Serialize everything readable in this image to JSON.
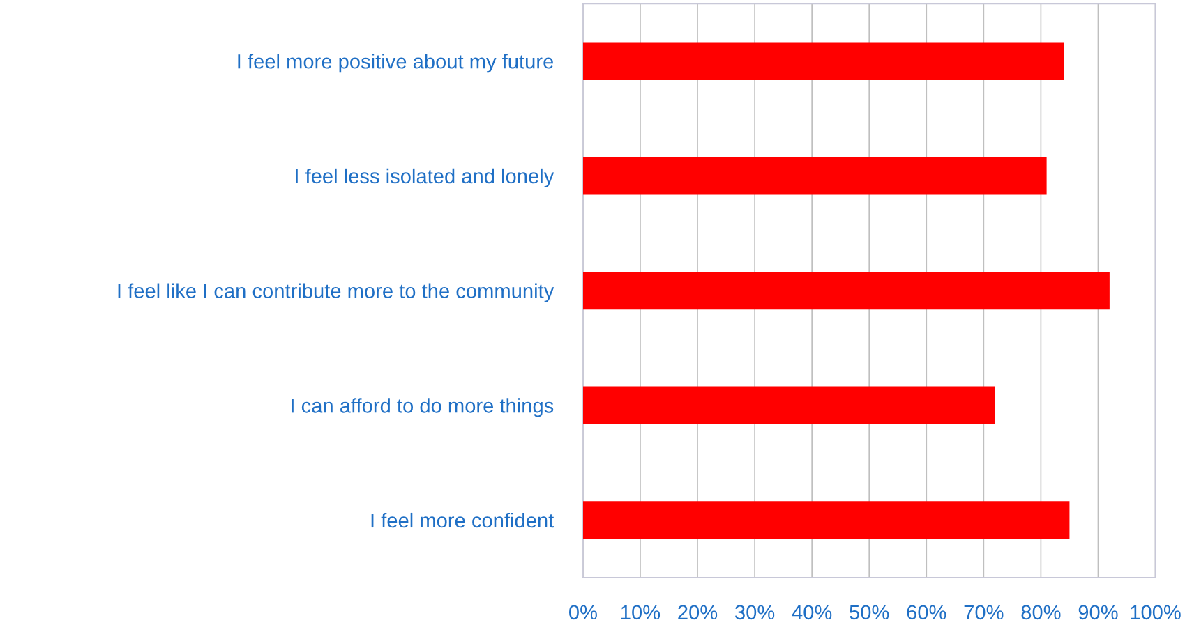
{
  "chart_data": {
    "type": "bar",
    "orientation": "horizontal",
    "categories": [
      "I feel more positive about my future",
      "I feel less isolated and lonely",
      "I feel like I can contribute more to the community",
      "I can afford to do more things",
      "I feel more confident"
    ],
    "values": [
      84,
      81,
      92,
      72,
      85
    ],
    "color": "#ff0000",
    "xlim": [
      0,
      100
    ],
    "xticks": [
      {
        "value": 0,
        "label": "0%"
      },
      {
        "value": 10,
        "label": "10%"
      },
      {
        "value": 20,
        "label": "20%"
      },
      {
        "value": 30,
        "label": "30%"
      },
      {
        "value": 40,
        "label": "40%"
      },
      {
        "value": 50,
        "label": "50%"
      },
      {
        "value": 60,
        "label": "60%"
      },
      {
        "value": 70,
        "label": "70%"
      },
      {
        "value": 80,
        "label": "80%"
      },
      {
        "value": 90,
        "label": "90%"
      },
      {
        "value": 100,
        "label": "100%"
      }
    ],
    "grid": "x",
    "legend": false
  }
}
